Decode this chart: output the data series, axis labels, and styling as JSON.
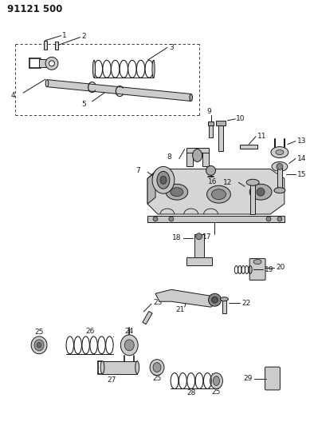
{
  "title": "91121 500",
  "bg_color": "#ffffff",
  "lc": "#1a1a1a",
  "fig_width": 3.94,
  "fig_height": 5.33,
  "dpi": 100,
  "lw": 0.7,
  "fs": 6.5,
  "fs_title": 8.5
}
